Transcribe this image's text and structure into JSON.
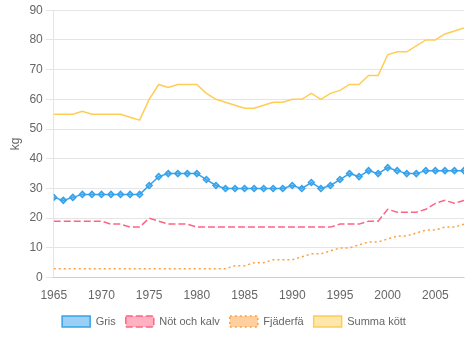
{
  "chart_data": {
    "type": "line",
    "ylabel": "kg",
    "x": [
      1965,
      1966,
      1967,
      1968,
      1969,
      1970,
      1971,
      1972,
      1973,
      1974,
      1975,
      1976,
      1977,
      1978,
      1979,
      1980,
      1981,
      1982,
      1983,
      1984,
      1985,
      1986,
      1987,
      1988,
      1989,
      1990,
      1991,
      1992,
      1993,
      1994,
      1995,
      1996,
      1997,
      1998,
      1999,
      2000,
      2001,
      2002,
      2003,
      2004,
      2005,
      2006,
      2007,
      2008
    ],
    "series": [
      {
        "name": "Gris",
        "line_style": "solid",
        "marker": "diamond",
        "values": [
          27,
          26,
          27,
          28,
          28,
          28,
          28,
          28,
          28,
          28,
          31,
          34,
          35,
          35,
          35,
          35,
          33,
          31,
          30,
          30,
          30,
          30,
          30,
          30,
          30,
          31,
          30,
          32,
          30,
          31,
          33,
          35,
          34,
          36,
          35,
          37,
          36,
          35,
          35,
          36,
          36,
          36,
          36,
          36
        ]
      },
      {
        "name": "Nöt och kalv",
        "line_style": "dashed",
        "values": [
          19,
          19,
          19,
          19,
          19,
          19,
          18,
          18,
          17,
          17,
          20,
          19,
          18,
          18,
          18,
          17,
          17,
          17,
          17,
          17,
          17,
          17,
          17,
          17,
          17,
          17,
          17,
          17,
          17,
          17,
          18,
          18,
          18,
          19,
          19,
          23,
          22,
          22,
          22,
          23,
          25,
          26,
          25,
          26
        ]
      },
      {
        "name": "Fjäderfä",
        "line_style": "dotted",
        "values": [
          3,
          3,
          3,
          3,
          3,
          3,
          3,
          3,
          3,
          3,
          3,
          3,
          3,
          3,
          3,
          3,
          3,
          3,
          3,
          4,
          4,
          5,
          5,
          6,
          6,
          6,
          7,
          8,
          8,
          9,
          10,
          10,
          11,
          12,
          12,
          13,
          14,
          14,
          15,
          16,
          16,
          17,
          17,
          18
        ]
      },
      {
        "name": "Summa kött",
        "line_style": "solid",
        "values": [
          55,
          55,
          55,
          56,
          55,
          55,
          55,
          55,
          54,
          53,
          60,
          65,
          64,
          65,
          65,
          65,
          62,
          60,
          59,
          58,
          57,
          57,
          58,
          59,
          59,
          60,
          60,
          62,
          60,
          62,
          63,
          65,
          65,
          68,
          68,
          75,
          76,
          76,
          78,
          80,
          80,
          82,
          83,
          84
        ]
      }
    ],
    "xlim": [
      1965,
      2008
    ],
    "xticks": [
      1965,
      1970,
      1975,
      1980,
      1985,
      1990,
      1995,
      2000,
      2005
    ],
    "ylim": [
      0,
      90
    ],
    "yticks": [
      0,
      10,
      20,
      30,
      40,
      50,
      60,
      70,
      80,
      90
    ],
    "grid": "y",
    "legend": "bottom"
  }
}
